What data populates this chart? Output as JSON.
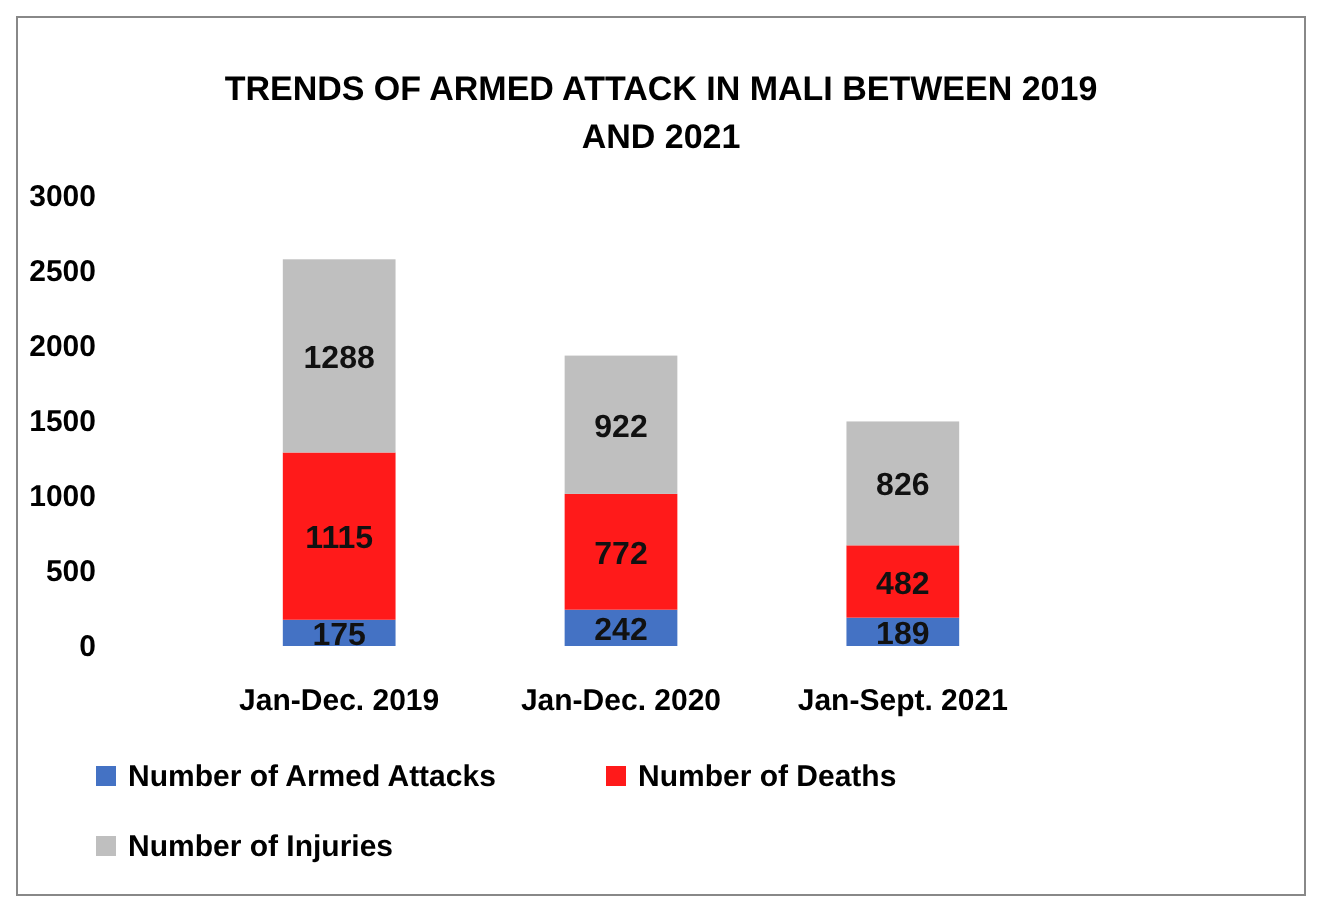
{
  "chart_data": {
    "type": "bar",
    "title": "TRENDS OF ARMED ATTACK IN MALI  BETWEEN 2019 AND 2021",
    "categories": [
      "Jan-Dec. 2019",
      "Jan-Dec. 2020",
      "Jan-Sept. 2021"
    ],
    "stacked": true,
    "data_labels": true,
    "ylim": [
      0,
      3000
    ],
    "yticks": [
      0,
      500,
      1000,
      1500,
      2000,
      2500,
      3000
    ],
    "legend": "bottom",
    "grid": false,
    "series": [
      {
        "name": "Number of Armed Attacks",
        "color": "#4472c4",
        "values": [
          175,
          242,
          189
        ]
      },
      {
        "name": "Number of Deaths",
        "color": "#ff1a1a",
        "values": [
          1115,
          772,
          482
        ]
      },
      {
        "name": "Number of Injuries",
        "color": "#bfbfbf",
        "values": [
          1288,
          922,
          826
        ]
      }
    ]
  }
}
